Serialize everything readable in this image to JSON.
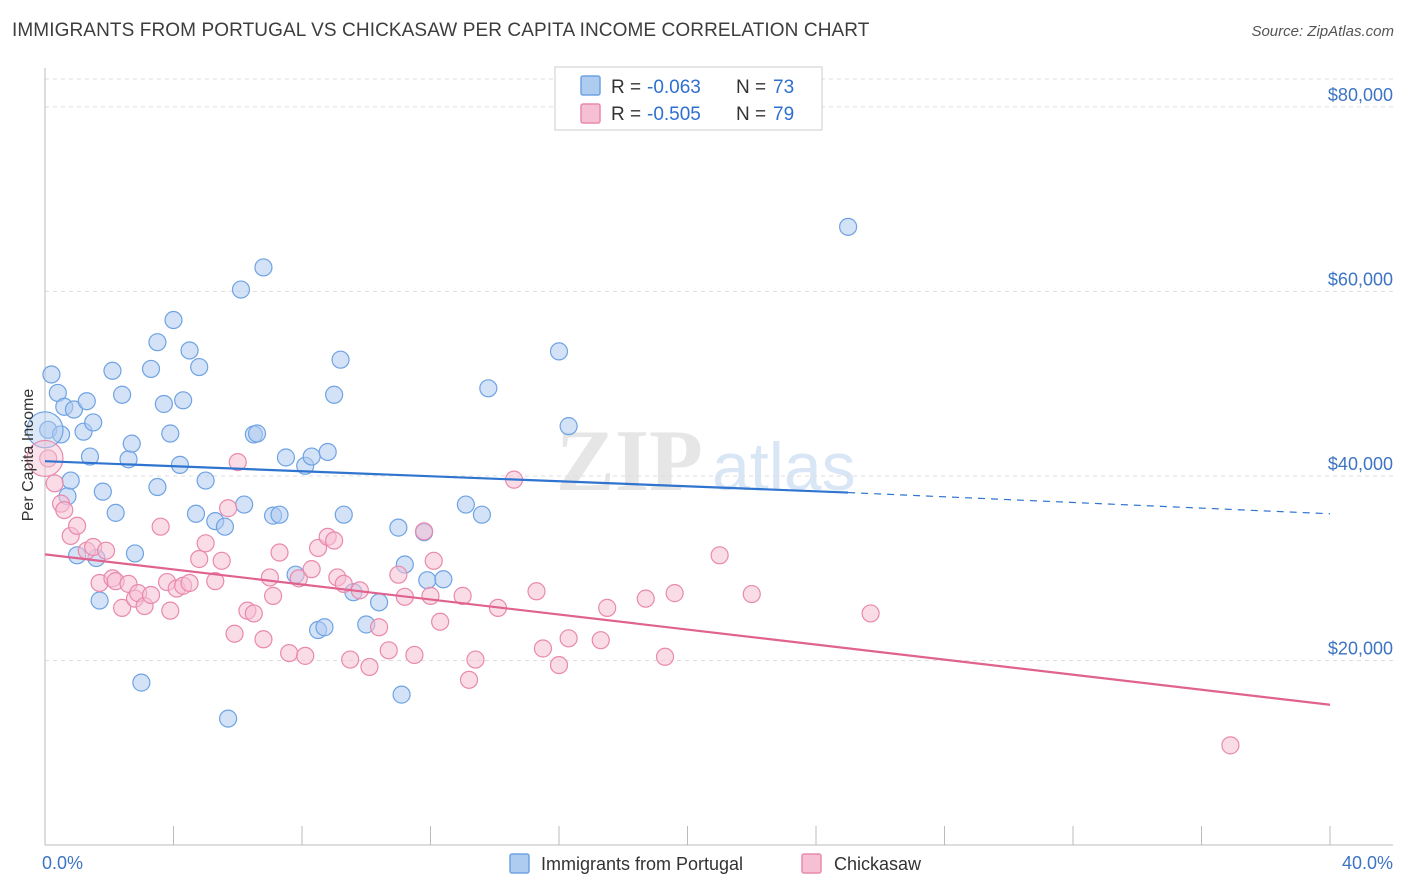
{
  "title": "IMMIGRANTS FROM PORTUGAL VS CHICKASAW PER CAPITA INCOME CORRELATION CHART",
  "source": "Source: ZipAtlas.com",
  "watermark": "ZIPatlas",
  "colors": {
    "blue": "#6fa3e3",
    "blue_fill": "#aecbf0",
    "blue_line": "#2f74cf",
    "pink": "#e989ad",
    "pink_fill": "#f5c0d3",
    "pink_line": "#e0628f",
    "tick_label": "#3d74c4"
  },
  "legend": {
    "rows": [
      {
        "r_label": "R =",
        "r_value": "-0.063",
        "n_label": "N =",
        "n_value": "73"
      },
      {
        "r_label": "R =",
        "r_value": "-0.505",
        "n_label": "N =",
        "n_value": "79"
      }
    ]
  },
  "chart_data": {
    "type": "scatter",
    "title": "IMMIGRANTS FROM PORTUGAL VS CHICKASAW PER CAPITA INCOME CORRELATION CHART",
    "xlabel": "",
    "ylabel": "Per Capita Income",
    "xlim": [
      0,
      40
    ],
    "ylim": [
      0,
      84000
    ],
    "x_tick_labels": [
      "0.0%",
      "40.0%"
    ],
    "y_ticks": [
      20000,
      40000,
      60000,
      80000
    ],
    "y_tick_labels": [
      "$20,000",
      "$40,000",
      "$60,000",
      "$80,000"
    ],
    "grid": true,
    "legend_position": "top-center",
    "series": [
      {
        "name": "Immigrants from Portugal",
        "color": "#6fa3e3",
        "stats": {
          "R": -0.063,
          "N": 73
        },
        "trend": {
          "x": [
            0,
            25.0,
            40
          ],
          "y": [
            41600,
            38200,
            35900
          ],
          "dashed_from_x": 25.0
        },
        "points": [
          [
            0.1,
            45000
          ],
          [
            0.2,
            51000
          ],
          [
            0.4,
            49000
          ],
          [
            0.5,
            44500
          ],
          [
            0.6,
            47500
          ],
          [
            0.7,
            37800
          ],
          [
            0.8,
            39500
          ],
          [
            0.9,
            47200
          ],
          [
            1.0,
            31400
          ],
          [
            1.2,
            44800
          ],
          [
            1.3,
            48100
          ],
          [
            1.4,
            42100
          ],
          [
            1.5,
            45800
          ],
          [
            1.6,
            31100
          ],
          [
            1.7,
            26500
          ],
          [
            1.8,
            38300
          ],
          [
            2.1,
            51400
          ],
          [
            2.2,
            36000
          ],
          [
            2.4,
            48800
          ],
          [
            2.6,
            41800
          ],
          [
            2.7,
            43500
          ],
          [
            2.8,
            31600
          ],
          [
            3.0,
            17600
          ],
          [
            3.3,
            51600
          ],
          [
            3.5,
            38800
          ],
          [
            3.5,
            54500
          ],
          [
            3.7,
            47800
          ],
          [
            3.9,
            44600
          ],
          [
            4.0,
            56900
          ],
          [
            4.2,
            41200
          ],
          [
            4.3,
            48200
          ],
          [
            4.5,
            53600
          ],
          [
            4.7,
            35900
          ],
          [
            4.8,
            51800
          ],
          [
            5.0,
            39500
          ],
          [
            5.3,
            35100
          ],
          [
            5.6,
            34500
          ],
          [
            5.7,
            13700
          ],
          [
            6.1,
            60200
          ],
          [
            6.2,
            36900
          ],
          [
            6.5,
            44500
          ],
          [
            6.6,
            44600
          ],
          [
            6.8,
            62600
          ],
          [
            7.1,
            35700
          ],
          [
            7.3,
            35800
          ],
          [
            7.5,
            42000
          ],
          [
            7.8,
            29300
          ],
          [
            8.1,
            41100
          ],
          [
            8.3,
            42100
          ],
          [
            8.5,
            23300
          ],
          [
            8.7,
            23600
          ],
          [
            8.8,
            42600
          ],
          [
            9.0,
            48800
          ],
          [
            9.2,
            52600
          ],
          [
            9.3,
            35800
          ],
          [
            9.6,
            27400
          ],
          [
            10.0,
            23900
          ],
          [
            10.4,
            26300
          ],
          [
            11.0,
            34400
          ],
          [
            11.1,
            16300
          ],
          [
            11.2,
            30400
          ],
          [
            11.8,
            33900
          ],
          [
            11.9,
            28700
          ],
          [
            12.4,
            28800
          ],
          [
            13.1,
            36900
          ],
          [
            13.6,
            35800
          ],
          [
            13.8,
            49500
          ],
          [
            16.0,
            53500
          ],
          [
            16.3,
            45400
          ],
          [
            25.0,
            67000
          ]
        ]
      },
      {
        "name": "Chickasaw",
        "color": "#e989ad",
        "stats": {
          "R": -0.505,
          "N": 79
        },
        "trend": {
          "x": [
            0,
            40
          ],
          "y": [
            31500,
            15200
          ]
        },
        "points": [
          [
            0.1,
            41900
          ],
          [
            0.3,
            39200
          ],
          [
            0.5,
            37000
          ],
          [
            0.6,
            36300
          ],
          [
            0.8,
            33500
          ],
          [
            1.0,
            34600
          ],
          [
            1.3,
            31900
          ],
          [
            1.5,
            32300
          ],
          [
            1.7,
            28400
          ],
          [
            1.9,
            31900
          ],
          [
            2.1,
            28900
          ],
          [
            2.2,
            28600
          ],
          [
            2.4,
            25700
          ],
          [
            2.6,
            28300
          ],
          [
            2.8,
            26700
          ],
          [
            2.9,
            27300
          ],
          [
            3.1,
            25900
          ],
          [
            3.3,
            27100
          ],
          [
            3.6,
            34500
          ],
          [
            3.8,
            28500
          ],
          [
            3.9,
            25400
          ],
          [
            4.1,
            27800
          ],
          [
            4.3,
            28100
          ],
          [
            4.5,
            28400
          ],
          [
            4.8,
            31000
          ],
          [
            5.0,
            32700
          ],
          [
            5.3,
            28600
          ],
          [
            5.5,
            30800
          ],
          [
            5.7,
            36500
          ],
          [
            5.9,
            22900
          ],
          [
            6.0,
            41500
          ],
          [
            6.3,
            25400
          ],
          [
            6.5,
            25100
          ],
          [
            6.8,
            22300
          ],
          [
            7.0,
            29000
          ],
          [
            7.1,
            27000
          ],
          [
            7.3,
            31700
          ],
          [
            7.6,
            20800
          ],
          [
            7.9,
            28900
          ],
          [
            8.1,
            20500
          ],
          [
            8.3,
            29900
          ],
          [
            8.5,
            32200
          ],
          [
            8.8,
            33400
          ],
          [
            9.0,
            33000
          ],
          [
            9.1,
            29000
          ],
          [
            9.3,
            28300
          ],
          [
            9.5,
            20100
          ],
          [
            9.8,
            27600
          ],
          [
            10.1,
            19300
          ],
          [
            10.4,
            23600
          ],
          [
            10.7,
            21100
          ],
          [
            11.0,
            29300
          ],
          [
            11.2,
            26900
          ],
          [
            11.5,
            20600
          ],
          [
            11.8,
            34000
          ],
          [
            12.0,
            27000
          ],
          [
            12.1,
            30800
          ],
          [
            12.3,
            24200
          ],
          [
            13.0,
            27000
          ],
          [
            13.2,
            17900
          ],
          [
            13.4,
            20100
          ],
          [
            14.1,
            25700
          ],
          [
            14.6,
            39600
          ],
          [
            15.3,
            27500
          ],
          [
            15.5,
            21300
          ],
          [
            16.0,
            19500
          ],
          [
            16.3,
            22400
          ],
          [
            17.3,
            22200
          ],
          [
            17.5,
            25700
          ],
          [
            18.7,
            26700
          ],
          [
            19.3,
            20400
          ],
          [
            19.6,
            27300
          ],
          [
            21.0,
            31400
          ],
          [
            22.0,
            27200
          ],
          [
            25.7,
            25100
          ],
          [
            36.9,
            10800
          ]
        ]
      }
    ]
  },
  "bottom_legend": [
    {
      "label": "Immigrants from Portugal"
    },
    {
      "label": "Chickasaw"
    }
  ]
}
